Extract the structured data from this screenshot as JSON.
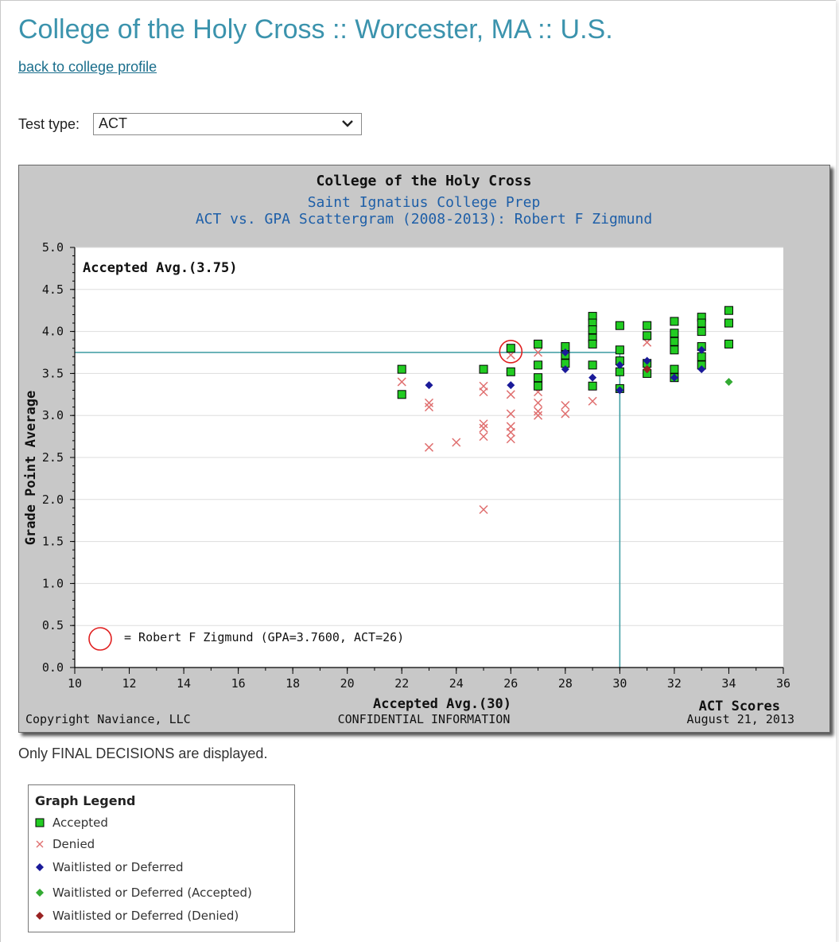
{
  "page": {
    "title": "College of the Holy Cross :: Worcester, MA :: U.S.",
    "back_link": "back to college profile",
    "test_type_label": "Test type:",
    "test_type_value": "ACT",
    "final_note": "Only FINAL DECISIONS are displayed."
  },
  "legend": {
    "title": "Graph Legend",
    "items": [
      {
        "label": "Accepted",
        "icon": "green-square-icon",
        "color": "#22cc22"
      },
      {
        "label": "Denied",
        "icon": "red-x-icon",
        "color": "#e07070"
      },
      {
        "label": "Waitlisted or Deferred",
        "icon": "blue-diamond-icon",
        "color": "#1a1a99"
      },
      {
        "label": "Waitlisted or Deferred (Accepted)",
        "icon": "green-diamond-icon",
        "color": "#33aa33"
      },
      {
        "label": "Waitlisted or Deferred (Denied)",
        "icon": "darkred-diamond-icon",
        "color": "#992222"
      }
    ]
  },
  "chart_data": {
    "type": "scatter",
    "title": "College of the Holy Cross",
    "subtitle1": "Saint Ignatius College Prep",
    "subtitle2": "ACT vs. GPA Scattergram (2008-2013): Robert F Zigmund",
    "ylabel": "Grade Point Average",
    "xlabel": "ACT Scores",
    "xlim": [
      10,
      36
    ],
    "ylim": [
      0.0,
      5.0
    ],
    "x_ticks": [
      "10",
      "12",
      "14",
      "16",
      "18",
      "20",
      "22",
      "24",
      "26",
      "28",
      "30",
      "32",
      "34",
      "36"
    ],
    "y_ticks": [
      "0.0",
      "0.5",
      "1.0",
      "1.5",
      "2.0",
      "2.5",
      "3.0",
      "3.5",
      "4.0",
      "4.5",
      "5.0"
    ],
    "accepted_avg_gpa": 3.75,
    "accepted_avg_act": 30,
    "accepted_avg_gpa_label": "Accepted Avg.(3.75)",
    "accepted_avg_act_label": "Accepted Avg.(30)",
    "student": {
      "act": 26,
      "gpa": 3.76,
      "label": "= Robert F Zigmund (GPA=3.7600, ACT=26)"
    },
    "footer_left": "Copyright Naviance, LLC",
    "footer_center": "CONFIDENTIAL INFORMATION",
    "footer_right": "August 21, 2013",
    "colors": {
      "accepted": "#22cc22",
      "denied": "#e07070",
      "waitlisted": "#1a1a99",
      "wl_accepted": "#33aa33",
      "wl_denied": "#992222",
      "avg_line": "#3a9aa0",
      "student_circle": "#e02020"
    },
    "series": [
      {
        "name": "Accepted",
        "points": [
          [
            22,
            3.55
          ],
          [
            22,
            3.25
          ],
          [
            25,
            3.55
          ],
          [
            26,
            3.8
          ],
          [
            26,
            3.52
          ],
          [
            27,
            3.85
          ],
          [
            27,
            3.6
          ],
          [
            27,
            3.45
          ],
          [
            27,
            3.35
          ],
          [
            28,
            3.82
          ],
          [
            28,
            3.72
          ],
          [
            28,
            3.62
          ],
          [
            29,
            4.18
          ],
          [
            29,
            4.1
          ],
          [
            29,
            4.02
          ],
          [
            29,
            3.92
          ],
          [
            29,
            3.85
          ],
          [
            29,
            3.6
          ],
          [
            29,
            3.35
          ],
          [
            30,
            4.07
          ],
          [
            30,
            3.78
          ],
          [
            30,
            3.65
          ],
          [
            30,
            3.52
          ],
          [
            30,
            3.32
          ],
          [
            31,
            4.07
          ],
          [
            31,
            3.95
          ],
          [
            31,
            3.62
          ],
          [
            31,
            3.5
          ],
          [
            32,
            4.12
          ],
          [
            32,
            3.98
          ],
          [
            32,
            3.88
          ],
          [
            32,
            3.78
          ],
          [
            32,
            3.55
          ],
          [
            32,
            3.45
          ],
          [
            33,
            4.17
          ],
          [
            33,
            4.1
          ],
          [
            33,
            4.0
          ],
          [
            33,
            3.82
          ],
          [
            33,
            3.7
          ],
          [
            33,
            3.6
          ],
          [
            34,
            4.25
          ],
          [
            34,
            4.1
          ],
          [
            34,
            3.85
          ]
        ]
      },
      {
        "name": "Denied",
        "points": [
          [
            22,
            3.4
          ],
          [
            23,
            3.15
          ],
          [
            23,
            3.1
          ],
          [
            23,
            2.62
          ],
          [
            24,
            2.68
          ],
          [
            25,
            3.35
          ],
          [
            25,
            3.28
          ],
          [
            25,
            2.9
          ],
          [
            25,
            2.85
          ],
          [
            25,
            2.75
          ],
          [
            25,
            1.88
          ],
          [
            26,
            3.72
          ],
          [
            26,
            3.25
          ],
          [
            26,
            3.02
          ],
          [
            26,
            2.87
          ],
          [
            26,
            2.8
          ],
          [
            26,
            2.72
          ],
          [
            27,
            3.75
          ],
          [
            27,
            3.28
          ],
          [
            27,
            3.15
          ],
          [
            27,
            3.05
          ],
          [
            27,
            3.0
          ],
          [
            28,
            3.12
          ],
          [
            28,
            3.02
          ],
          [
            29,
            3.17
          ],
          [
            31,
            3.87
          ]
        ]
      },
      {
        "name": "Waitlisted or Deferred",
        "points": [
          [
            23,
            3.36
          ],
          [
            26,
            3.36
          ],
          [
            28,
            3.75
          ],
          [
            28,
            3.55
          ],
          [
            29,
            3.45
          ],
          [
            30,
            3.6
          ],
          [
            30,
            3.3
          ],
          [
            31,
            3.65
          ],
          [
            31,
            3.55
          ],
          [
            32,
            3.45
          ],
          [
            33,
            3.78
          ],
          [
            33,
            3.55
          ]
        ]
      },
      {
        "name": "Waitlisted or Deferred (Accepted)",
        "points": [
          [
            34,
            3.4
          ]
        ]
      },
      {
        "name": "Waitlisted or Deferred (Denied)",
        "points": [
          [
            31,
            3.55
          ]
        ]
      }
    ]
  }
}
